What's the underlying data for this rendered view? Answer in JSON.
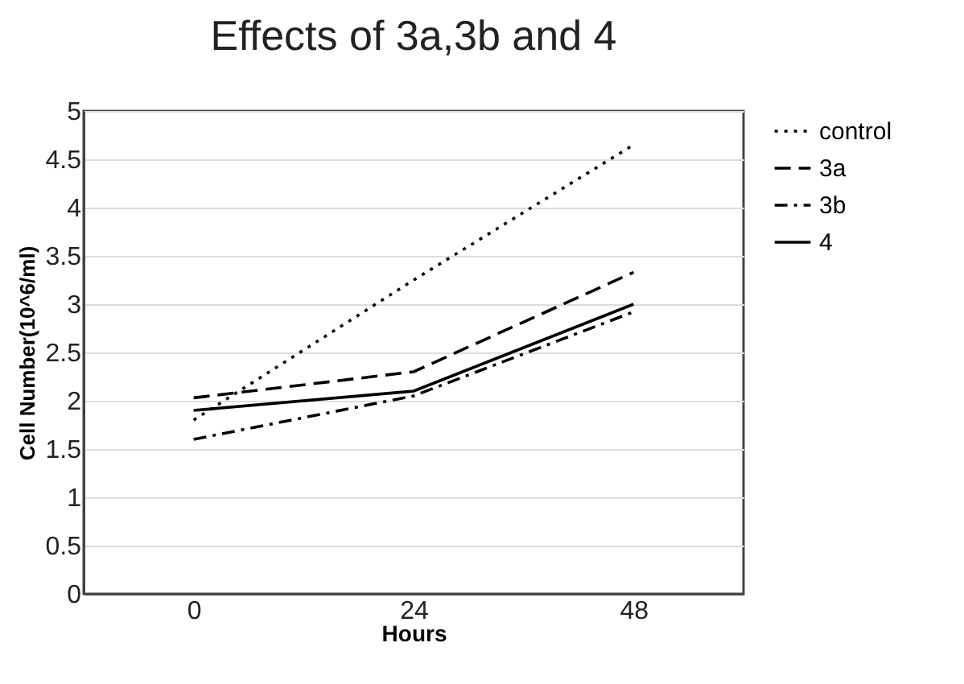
{
  "chart_data": {
    "type": "line",
    "title": "Effects of 3a,3b and 4",
    "xlabel": "Hours",
    "ylabel": "Cell Number(10^6/ml)",
    "categories": [
      "0",
      "24",
      "48"
    ],
    "series": [
      {
        "name": "control",
        "color": "#000000",
        "line_style": "dotted",
        "values": [
          1.8,
          3.25,
          4.65
        ]
      },
      {
        "name": "3a",
        "color": "#000000",
        "line_style": "dashed",
        "values": [
          2.03,
          2.3,
          3.33
        ]
      },
      {
        "name": "3b",
        "color": "#000000",
        "line_style": "dashdot",
        "values": [
          1.6,
          2.05,
          2.92
        ]
      },
      {
        "name": "4",
        "color": "#000000",
        "line_style": "solid",
        "values": [
          1.9,
          2.1,
          3.0
        ]
      }
    ],
    "ylim": [
      0,
      5
    ],
    "yticks": [
      0,
      0.5,
      1,
      1.5,
      2,
      2.5,
      3,
      3.5,
      4,
      4.5,
      5
    ],
    "grid": "y",
    "legend": "right"
  }
}
